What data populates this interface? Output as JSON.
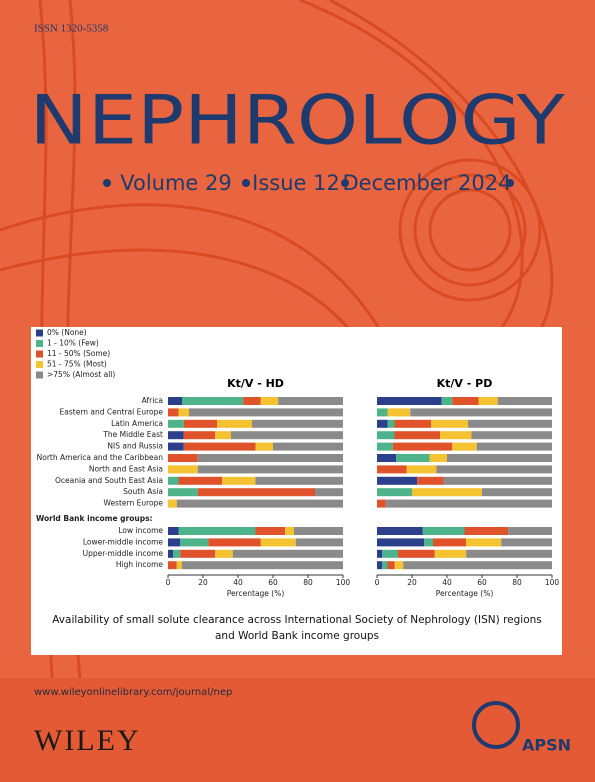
{
  "issn": "ISSN 1320-5358",
  "title": "NEPHROLOGY",
  "volume": "Volume 29",
  "issue": "Issue 12",
  "date": "December 2024",
  "caption": [
    "Availability of small solute clearance across International Society of Nephrology (ISN) regions",
    "and World Bank income groups"
  ],
  "url": "www.wileyonlinelibrary.com/journal/nep",
  "publisher": "WILEY",
  "society": "APSN",
  "chart_data": [
    {
      "type": "stacked-bar-horizontal",
      "title": "Kt/V - HD",
      "xlabel": "Percentage (%)",
      "group_label": "World Bank income groups:",
      "categories": [
        "Africa",
        "Eastern and Central Europe",
        "Latin America",
        "The Middle East",
        "NIS and Russia",
        "North America and the Caribbean",
        "North and East Asia",
        "Oceania and South East Asia",
        "South Asia",
        "Western Europe",
        "Low income",
        "Lower-middle income",
        "Upper-middle income",
        "High income"
      ],
      "xlim": [
        0,
        100
      ],
      "xticks": [
        0,
        20,
        40,
        60,
        80,
        100
      ],
      "series": [
        {
          "name": "0% (None)",
          "color": "#2b3f8c",
          "values": [
            8,
            0,
            0,
            9,
            9,
            0,
            0,
            0,
            0,
            0,
            6,
            7,
            3,
            0
          ]
        },
        {
          "name": "1 - 10% (Few)",
          "color": "#4db38a",
          "values": [
            35,
            0,
            9,
            0,
            0,
            0,
            0,
            6,
            17,
            0,
            44,
            16,
            4,
            0
          ]
        },
        {
          "name": "11 - 50% (Some)",
          "color": "#e0522a",
          "values": [
            10,
            6,
            19,
            18,
            41,
            17,
            0,
            25,
            67,
            0,
            17,
            30,
            20,
            5
          ]
        },
        {
          "name": "51 - 75% (Most)",
          "color": "#f5c231",
          "values": [
            10,
            6,
            20,
            9,
            10,
            0,
            17,
            19,
            0,
            5,
            5,
            20,
            10,
            3
          ]
        },
        {
          "name": ">75% (Almost all)",
          "color": "#8a8a8a",
          "values": [
            37,
            88,
            52,
            64,
            40,
            83,
            83,
            50,
            16,
            95,
            28,
            27,
            63,
            92
          ]
        }
      ]
    },
    {
      "type": "stacked-bar-horizontal",
      "title": "Kt/V - PD",
      "xlabel": "Percentage (%)",
      "xlim": [
        0,
        100
      ],
      "xticks": [
        0,
        20,
        40,
        60,
        80,
        100
      ],
      "series": [
        {
          "color": "#2b3f8c",
          "values": [
            37,
            0,
            6,
            0,
            0,
            11,
            0,
            23,
            0,
            0,
            26,
            27,
            3,
            3
          ]
        },
        {
          "color": "#4db38a",
          "values": [
            6,
            6,
            4,
            10,
            9,
            19,
            0,
            0,
            20,
            0,
            24,
            5,
            9,
            3
          ]
        },
        {
          "color": "#e0522a",
          "values": [
            15,
            0,
            21,
            26,
            34,
            0,
            17,
            15,
            0,
            5,
            25,
            19,
            21,
            4
          ]
        },
        {
          "color": "#f5c231",
          "values": [
            11,
            13,
            21,
            18,
            14,
            10,
            17,
            0,
            40,
            0,
            0,
            20,
            18,
            5
          ]
        },
        {
          "color": "#8a8a8a",
          "values": [
            31,
            81,
            48,
            46,
            43,
            60,
            66,
            62,
            40,
            95,
            25,
            29,
            49,
            85
          ]
        }
      ]
    }
  ]
}
